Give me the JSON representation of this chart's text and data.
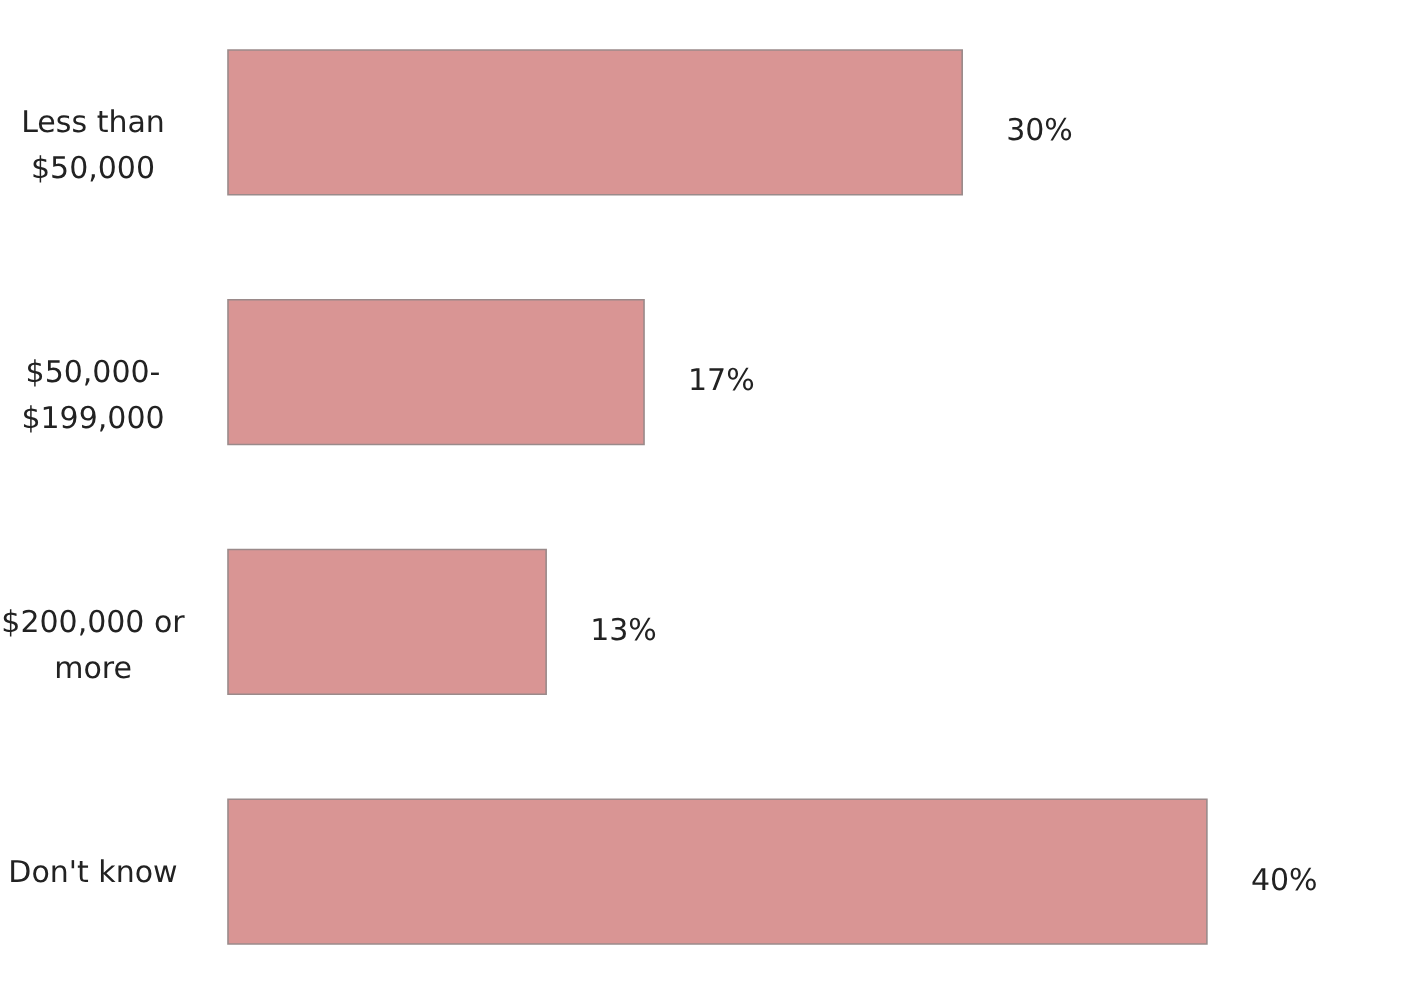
{
  "chart_data": {
    "type": "bar",
    "orientation": "horizontal",
    "categories": [
      "Less than\n$50,000",
      "$50,000-\n$199,000",
      "$200,000 or\nmore",
      "Don't know"
    ],
    "values": [
      30,
      17,
      13,
      40
    ],
    "value_labels": [
      "30%",
      "17%",
      "13%",
      "40%"
    ],
    "color": "#d99594"
  }
}
